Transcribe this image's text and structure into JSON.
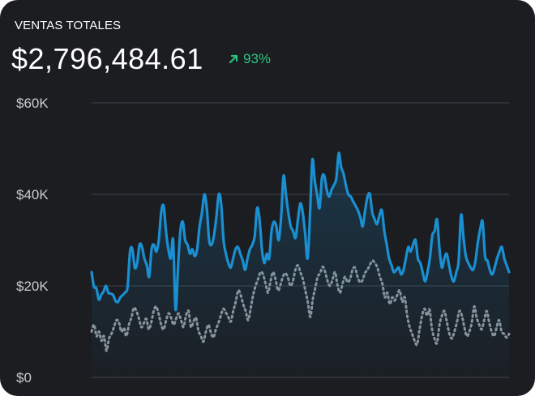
{
  "header": {
    "title": "VENTAS TOTALES",
    "amount": "$2,796,484.61",
    "change": "93%",
    "change_icon": "arrow-up-right-icon",
    "change_color": "#2ec27e"
  },
  "colors": {
    "background": "#1b1d21",
    "primary_line": "#1a8fd1",
    "secondary_line": "#8f9499",
    "grid": "#3a3d42"
  },
  "chart_data": {
    "type": "line",
    "y_ticks": [
      {
        "value": 60000,
        "label": "$60K"
      },
      {
        "value": 40000,
        "label": "$40K"
      },
      {
        "value": 20000,
        "label": "$20K"
      },
      {
        "value": 0,
        "label": "$0"
      }
    ],
    "ylim": [
      0,
      60000
    ],
    "xlim": [
      0,
      114
    ],
    "grid": true,
    "legend": "none",
    "series": [
      {
        "style": "solid-area",
        "values": [
          23000,
          19800,
          19500,
          17000,
          18000,
          18800,
          20000,
          18500,
          18300,
          18000,
          16700,
          16500,
          17500,
          18000,
          18600,
          19800,
          27500,
          28000,
          24000,
          25000,
          29000,
          28500,
          26000,
          24500,
          22000,
          28000,
          29000,
          27500,
          30000,
          36000,
          37500,
          32000,
          28000,
          26000,
          30000,
          14800,
          24000,
          32000,
          34000,
          30000,
          29000,
          27000,
          28000,
          26500,
          28000,
          33000,
          36000,
          40000,
          37000,
          30000,
          29000,
          31000,
          35000,
          40000,
          38000,
          30000,
          27000,
          25000,
          24000,
          26000,
          28000,
          28500,
          27000,
          25500,
          23500,
          26000,
          28000,
          29000,
          31000,
          37000,
          34500,
          28000,
          25000,
          27000,
          26000,
          32000,
          34000,
          33000,
          30000,
          35000,
          44000,
          40000,
          36000,
          33000,
          32000,
          30500,
          34500,
          38000,
          36000,
          31500,
          26000,
          35000,
          47500,
          43000,
          40000,
          37000,
          43500,
          44000,
          41000,
          39500,
          41000,
          42000,
          43500,
          49000,
          46000,
          44500,
          42000,
          40000,
          39500,
          38500,
          37500,
          36500,
          35000,
          33000,
          36500,
          39500,
          40000,
          36000,
          34500,
          33500,
          35500,
          36500,
          32000,
          29000,
          26000,
          24500,
          23000,
          23500,
          24000,
          22500,
          23500,
          26000,
          28500,
          27500,
          29000,
          30000,
          26000,
          25000,
          23000,
          21000,
          23000,
          26000,
          31000,
          32000,
          34500,
          28000,
          24000,
          26000,
          27000,
          24500,
          22000,
          21000,
          23000,
          25500,
          35500,
          30500,
          26500,
          25000,
          24000,
          23500,
          25500,
          29500,
          32500,
          34000,
          26500,
          25500,
          23500,
          22500,
          24000,
          26000,
          27500,
          28500,
          26000,
          24500,
          23000
        ],
        "_comment": ""
      },
      {
        "style": "dotted",
        "values": [
          10000,
          11500,
          9000,
          10000,
          8000,
          9000,
          5800,
          8500,
          9500,
          11000,
          12500,
          12000,
          10000,
          10800,
          9000,
          11500,
          13000,
          15200,
          14500,
          13000,
          11000,
          11800,
          12800,
          10500,
          12000,
          14500,
          15500,
          13800,
          11500,
          10500,
          12500,
          14000,
          13000,
          11500,
          12800,
          14000,
          12500,
          11000,
          13500,
          14500,
          11000,
          12200,
          13000,
          10200,
          9000,
          7800,
          10000,
          11500,
          9800,
          8700,
          10500,
          11800,
          13500,
          15000,
          14200,
          13200,
          12200,
          14500,
          16500,
          19000,
          18000,
          16000,
          14500,
          12500,
          15000,
          18000,
          20000,
          21500,
          23000,
          22500,
          20500,
          18500,
          21000,
          23000,
          21500,
          19000,
          20200,
          22000,
          22800,
          21800,
          20000,
          21000,
          23500,
          24500,
          23000,
          21500,
          19000,
          16500,
          13200,
          17000,
          19500,
          22000,
          22800,
          24200,
          23000,
          21000,
          20000,
          21500,
          23000,
          20000,
          18500,
          20500,
          22000,
          20800,
          21500,
          23500,
          24000,
          22000,
          20800,
          21200,
          22800,
          23500,
          24600,
          25500,
          25000,
          24000,
          22000,
          20500,
          17500,
          18500,
          16000,
          17500,
          16800,
          18000,
          19000,
          16500,
          17500,
          13500,
          11000,
          9500,
          8000,
          7200,
          10500,
          13500,
          15000,
          13500,
          14800,
          10500,
          8500,
          7500,
          11500,
          13500,
          14500,
          12000,
          9500,
          8500,
          10000,
          12000,
          14500,
          13500,
          11000,
          9000,
          10000,
          12000,
          15500,
          13000,
          11500,
          10500,
          12500,
          14500,
          12000,
          10000,
          9000,
          11000,
          12500,
          10000,
          9500,
          8700,
          9500
        ],
        "_comment": ""
      }
    ]
  }
}
